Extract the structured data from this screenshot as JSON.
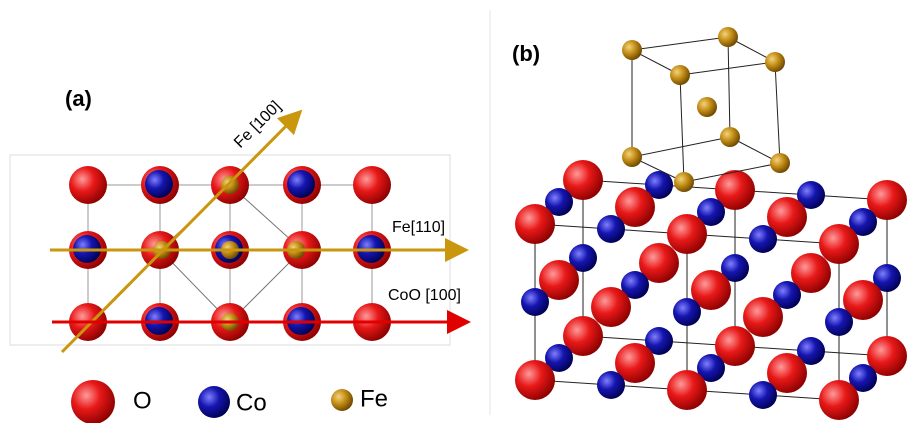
{
  "panel_a": {
    "label": "(a)",
    "arrows": [
      "Fe [100]",
      "Fe[110]",
      "CoO [100]"
    ]
  },
  "panel_b": {
    "label": "(b)"
  },
  "legend": [
    "O",
    "Co",
    "Fe"
  ]
}
